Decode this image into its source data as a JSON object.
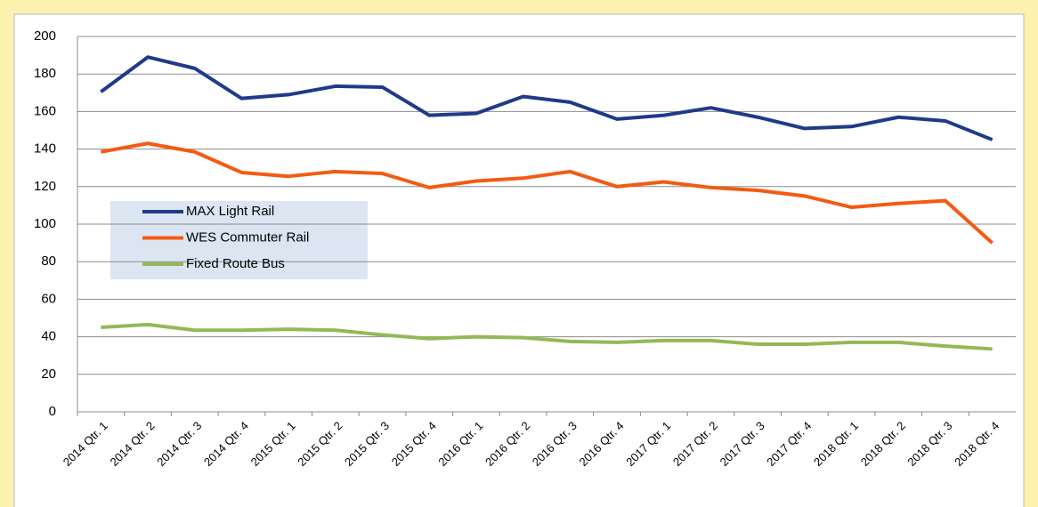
{
  "chart_data": {
    "type": "line",
    "categories": [
      "2014 Qtr. 1",
      "2014 Qtr. 2",
      "2014 Qtr. 3",
      "2014 Qtr. 4",
      "2015 Qtr. 1",
      "2015 Qtr. 2",
      "2015 Qtr. 3",
      "2015 Qtr. 4",
      "2016 Qtr. 1",
      "2016 Qtr. 2",
      "2016 Qtr. 3",
      "2016 Qtr. 4",
      "2017 Qtr. 1",
      "2017 Qtr. 2",
      "2017 Qtr. 3",
      "2017 Qtr. 4",
      "2018 Qtr. 1",
      "2018 Qtr. 2",
      "2018 Qtr. 3",
      "2018 Qtr. 4"
    ],
    "series": [
      {
        "name": "MAX Light Rail",
        "color": "#203a8a",
        "values": [
          170.5,
          189,
          183,
          167,
          169,
          173.5,
          173,
          158,
          159,
          168,
          165,
          156,
          158,
          162,
          157,
          151,
          152,
          157,
          155,
          145
        ]
      },
      {
        "name": "WES Commuter Rail",
        "color": "#f35b12",
        "values": [
          138.5,
          143,
          138.5,
          127.5,
          125.5,
          128,
          127,
          119.5,
          123,
          124.5,
          128,
          120,
          122.5,
          119.5,
          118,
          115,
          109,
          111,
          112.5,
          90
        ]
      },
      {
        "name": "Fixed Route Bus",
        "color": "#93b956",
        "values": [
          45,
          46.5,
          43.5,
          43.5,
          44,
          43.5,
          41,
          39,
          40,
          39.5,
          37.5,
          37,
          38,
          38,
          36,
          36,
          37,
          37,
          35,
          33.5
        ]
      }
    ],
    "ylim": [
      0,
      200
    ],
    "yticks": [
      0,
      20,
      40,
      60,
      80,
      100,
      120,
      140,
      160,
      180,
      200
    ],
    "grid": true
  }
}
